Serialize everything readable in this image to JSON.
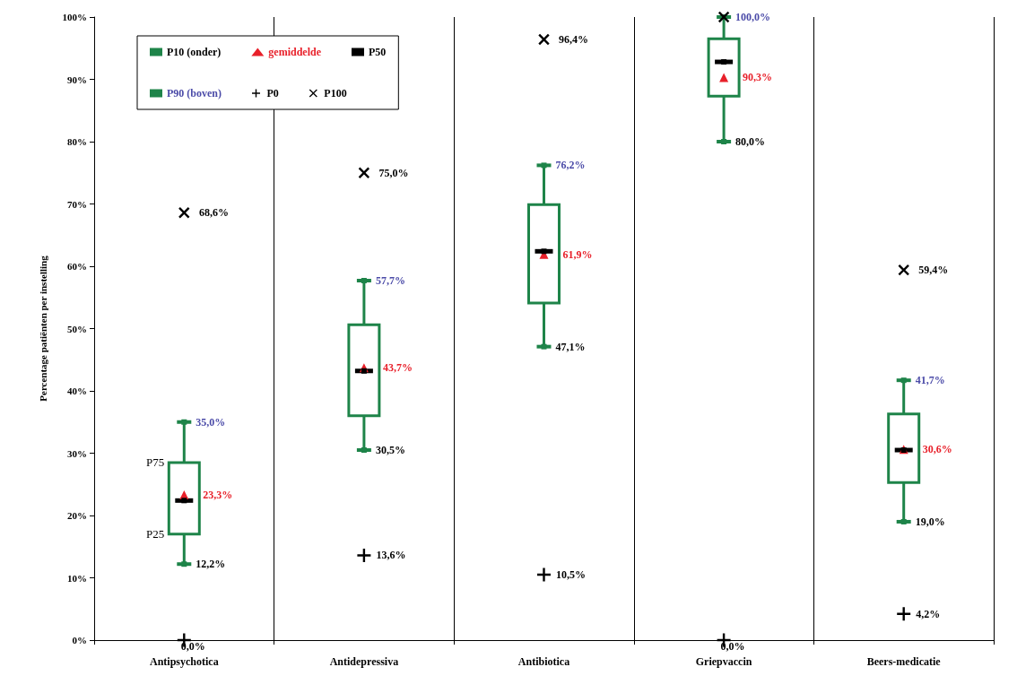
{
  "chart_data": {
    "type": "box",
    "ylabel": "Percentage patiënten per instelling",
    "categories": [
      "Antipsychotica",
      "Antidepressiva",
      "Antibiotica",
      "Griepvaccin",
      "Beers-medicatie"
    ],
    "ylim": [
      0,
      100
    ],
    "yticks": [
      {
        "value": 0,
        "label": "0%"
      },
      {
        "value": 10,
        "label": "10%"
      },
      {
        "value": 20,
        "label": "20%"
      },
      {
        "value": 30,
        "label": "30%"
      },
      {
        "value": 40,
        "label": "40%"
      },
      {
        "value": 50,
        "label": "50%"
      },
      {
        "value": 60,
        "label": "60%"
      },
      {
        "value": 70,
        "label": "70%"
      },
      {
        "value": 80,
        "label": "80%"
      },
      {
        "value": 90,
        "label": "90%"
      },
      {
        "value": 100,
        "label": "100%"
      }
    ],
    "grid": "x",
    "legend": "top left",
    "series": [
      {
        "color": "#1e8449",
        "boxes": [
          {
            "low": 12.2,
            "q1": 17.0,
            "median": 22.4,
            "q3": 28.5,
            "high": 35.0
          },
          {
            "low": 30.5,
            "q1": 36.0,
            "median": 43.2,
            "q3": 50.6,
            "high": 57.7
          },
          {
            "low": 47.1,
            "q1": 54.1,
            "median": 62.4,
            "q3": 69.9,
            "high": 76.2
          },
          {
            "low": 80.0,
            "q1": 87.3,
            "median": 92.8,
            "q3": 96.5,
            "high": 100.0
          },
          {
            "low": 19.0,
            "q1": 25.3,
            "median": 30.5,
            "q3": 36.3,
            "high": 41.7
          }
        ]
      },
      {
        "name": "P10 (onder)",
        "type": "scatter",
        "marker": "square",
        "color": "#1e8449",
        "values": [
          12.2,
          30.5,
          47.1,
          80.0,
          19.0
        ],
        "value_labels": [
          "12,2%",
          "30,5%",
          "47,1%",
          "80,0%",
          "19,0%"
        ]
      },
      {
        "name": "gemiddelde",
        "type": "scatter",
        "marker": "triangle",
        "color": "#e8202a",
        "values": [
          23.3,
          43.7,
          61.9,
          90.3,
          30.6
        ],
        "value_labels": [
          "23,3%",
          "43,7%",
          "61,9%",
          "90,3%",
          "30,6%"
        ]
      },
      {
        "name": "P50",
        "type": "scatter",
        "marker": "square",
        "color": "#000000",
        "values": [
          22.4,
          43.2,
          62.4,
          92.8,
          30.5
        ]
      },
      {
        "name": "P90 (boven)",
        "type": "scatter",
        "marker": "square",
        "color": "#1e8449",
        "values": [
          35.0,
          57.7,
          76.2,
          100.0,
          41.7
        ],
        "value_labels": [
          "35,0%",
          "57,7%",
          "76,2%",
          "100,0%",
          "41,7%"
        ]
      },
      {
        "name": "P0",
        "type": "scatter",
        "marker": "plus",
        "color": "#000000",
        "values": [
          0.0,
          13.6,
          10.5,
          0.0,
          4.2
        ],
        "value_labels": [
          "0,0%",
          "13,6%",
          "10,5%",
          "0,0%",
          "4,2%"
        ]
      },
      {
        "name": "P100",
        "type": "scatter",
        "marker": "cross",
        "color": "#000000",
        "values": [
          68.6,
          75.0,
          96.4,
          100.0,
          59.4
        ],
        "value_labels": [
          "68,6%",
          "75,0%",
          "96,4%",
          null,
          "59,4%"
        ]
      }
    ],
    "annotations": [
      {
        "text": "P75",
        "x": "Antipsychotica",
        "y": 28.5
      },
      {
        "text": "P25",
        "x": "Antipsychotica",
        "y": 17.0
      }
    ]
  }
}
